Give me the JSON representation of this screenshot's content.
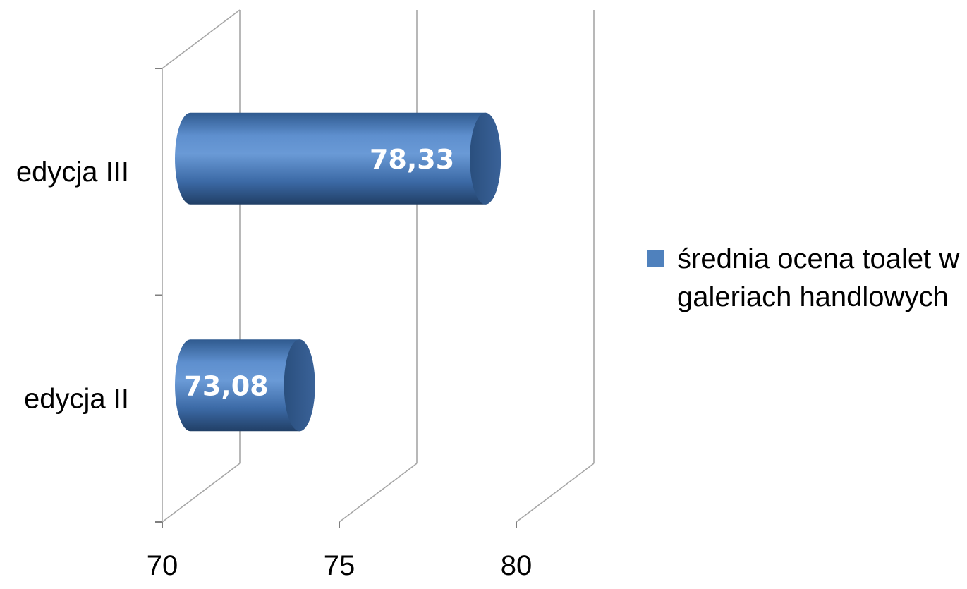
{
  "chart_data": {
    "type": "bar",
    "orientation": "horizontal",
    "style": "3d-cylinder",
    "categories": [
      "edycja II",
      "edycja III"
    ],
    "series": [
      {
        "name": "średnia ocena toalet w galeriach handlowych",
        "values": [
          73.08,
          78.33
        ],
        "value_labels": [
          "73,08",
          "78,33"
        ],
        "color": "#4F81BD"
      }
    ],
    "xlim": [
      70,
      80
    ],
    "x_ticks": [
      {
        "value": 70,
        "label": "70"
      },
      {
        "value": 75,
        "label": "75"
      },
      {
        "value": 80,
        "label": "80"
      }
    ],
    "grid": true,
    "legend_position": "right"
  }
}
